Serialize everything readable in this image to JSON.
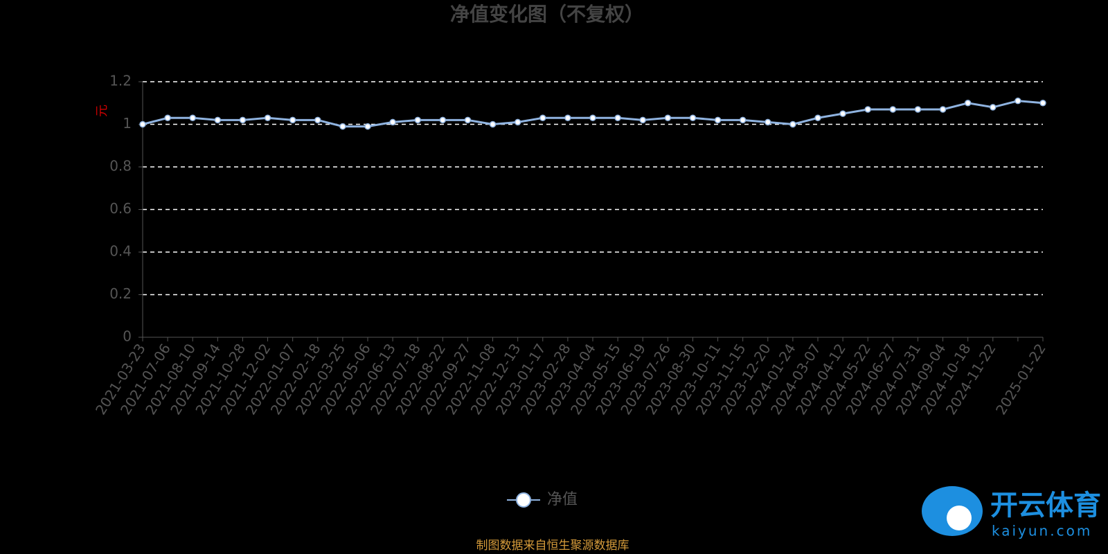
{
  "chart_data": {
    "type": "line",
    "title": "净值变化图（不复权）",
    "y_label": "元",
    "source": "制图数据来自恒生聚源数据库",
    "watermark": {
      "brand": "开云体育",
      "site": "kaiyun.com"
    },
    "categories": [
      "2021-03-23",
      "2021-07-06",
      "2021-08-10",
      "2021-09-14",
      "2021-10-28",
      "2021-12-02",
      "2022-01-07",
      "2022-02-18",
      "2022-03-25",
      "2022-05-06",
      "2022-06-13",
      "2022-07-18",
      "2022-08-22",
      "2022-09-27",
      "2022-11-08",
      "2022-12-13",
      "2023-01-17",
      "2023-02-28",
      "2023-04-04",
      "2023-05-15",
      "2023-06-19",
      "2023-07-26",
      "2023-08-30",
      "2023-10-11",
      "2023-11-15",
      "2023-12-20",
      "2024-01-24",
      "2024-03-07",
      "2024-04-12",
      "2024-05-22",
      "2024-06-27",
      "2024-07-31",
      "2024-09-04",
      "2024-10-18",
      "2024-11-22",
      null,
      "2025-01-22"
    ],
    "series": [
      {
        "name": "净值",
        "color": "#8fb3e0",
        "values": [
          1.0,
          1.03,
          1.03,
          1.02,
          1.02,
          1.03,
          1.02,
          1.02,
          0.99,
          0.99,
          1.01,
          1.02,
          1.02,
          1.02,
          1.0,
          1.01,
          1.03,
          1.03,
          1.03,
          1.03,
          1.02,
          1.03,
          1.03,
          1.02,
          1.02,
          1.01,
          1.0,
          1.03,
          1.05,
          1.07,
          1.07,
          1.07,
          1.07,
          1.1,
          1.08,
          1.11,
          1.1
        ]
      }
    ],
    "ylim": [
      0,
      1.2
    ],
    "yticks": [
      0,
      0.2,
      0.4,
      0.6,
      0.8,
      1,
      1.2
    ],
    "grid": true
  }
}
